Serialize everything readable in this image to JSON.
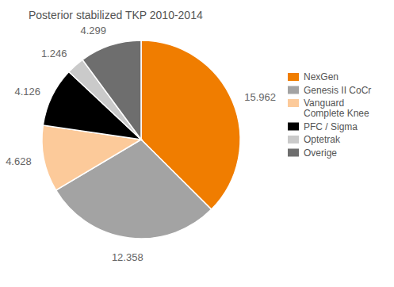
{
  "chart_data": {
    "type": "pie",
    "title": "Posterior stabilized TKP 2010-2014",
    "categories": [
      "NexGen",
      "Genesis II CoCr",
      "Vanguard Complete Knee",
      "PFC / Sigma",
      "Optetrak",
      "Overige"
    ],
    "values": [
      15962,
      12358,
      4628,
      4126,
      1246,
      4299
    ],
    "value_labels": [
      "15.962",
      "12.358",
      "4.628",
      "4.126",
      "1.246",
      "4.299"
    ],
    "colors": [
      "#f07d00",
      "#a3a3a3",
      "#fcca9a",
      "#000000",
      "#cacaca",
      "#6e6e6e"
    ],
    "data_labels": true,
    "legend": "right"
  }
}
